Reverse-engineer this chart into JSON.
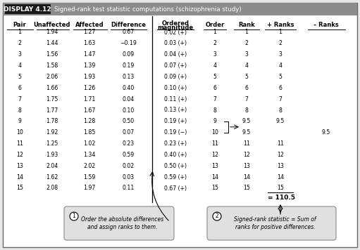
{
  "title_box": "DISPLAY 4.12",
  "title_text": "Signed-rank test statistic computations (schizophrenia study)",
  "rows": [
    [
      1,
      1.94,
      1.27,
      "0.67",
      "0.02 (+)",
      1,
      "1",
      "1",
      ""
    ],
    [
      2,
      1.44,
      1.63,
      "-0.19",
      "0.03 (+)",
      2,
      "2",
      "2",
      ""
    ],
    [
      3,
      1.56,
      1.47,
      "0.09",
      "0.04 (+)",
      3,
      "3",
      "3",
      ""
    ],
    [
      4,
      1.58,
      1.39,
      "0.19",
      "0.07 (+)",
      4,
      "4",
      "4",
      ""
    ],
    [
      5,
      2.06,
      1.93,
      "0.13",
      "0.09 (+)",
      5,
      "5",
      "5",
      ""
    ],
    [
      6,
      1.66,
      1.26,
      "0.40",
      "0.10 (+)",
      6,
      "6",
      "6",
      ""
    ],
    [
      7,
      1.75,
      1.71,
      "0.04",
      "0.11 (+)",
      7,
      "7",
      "7",
      ""
    ],
    [
      8,
      1.77,
      1.67,
      "0.10",
      "0.13 (+)",
      8,
      "8",
      "8",
      ""
    ],
    [
      9,
      1.78,
      1.28,
      "0.50",
      "0.19 (+)",
      9,
      "9.5",
      "9.5",
      ""
    ],
    [
      10,
      1.92,
      1.85,
      "0.07",
      "0.19 (−)",
      10,
      "9.5",
      "",
      "9.5"
    ],
    [
      11,
      1.25,
      1.02,
      "0.23",
      "0.23 (+)",
      11,
      "11",
      "11",
      ""
    ],
    [
      12,
      1.93,
      1.34,
      "0.59",
      "0.40 (+)",
      12,
      "12",
      "12",
      ""
    ],
    [
      13,
      2.04,
      2.02,
      "0.02",
      "0.50 (+)",
      13,
      "13",
      "13",
      ""
    ],
    [
      14,
      1.62,
      1.59,
      "0.03",
      "0.59 (+)",
      14,
      "14",
      "14",
      ""
    ],
    [
      15,
      2.08,
      1.97,
      "0.11",
      "0.67 (+)",
      15,
      "15",
      "15",
      ""
    ]
  ],
  "sum_label": "= 110.5",
  "bg_color": "#e8e8e8",
  "white": "#ffffff",
  "title_bar_color": "#8c8c8c",
  "title_label_color": "#1a1a1a",
  "note_box_color": "#e0e0e0",
  "note_border_color": "#888888"
}
